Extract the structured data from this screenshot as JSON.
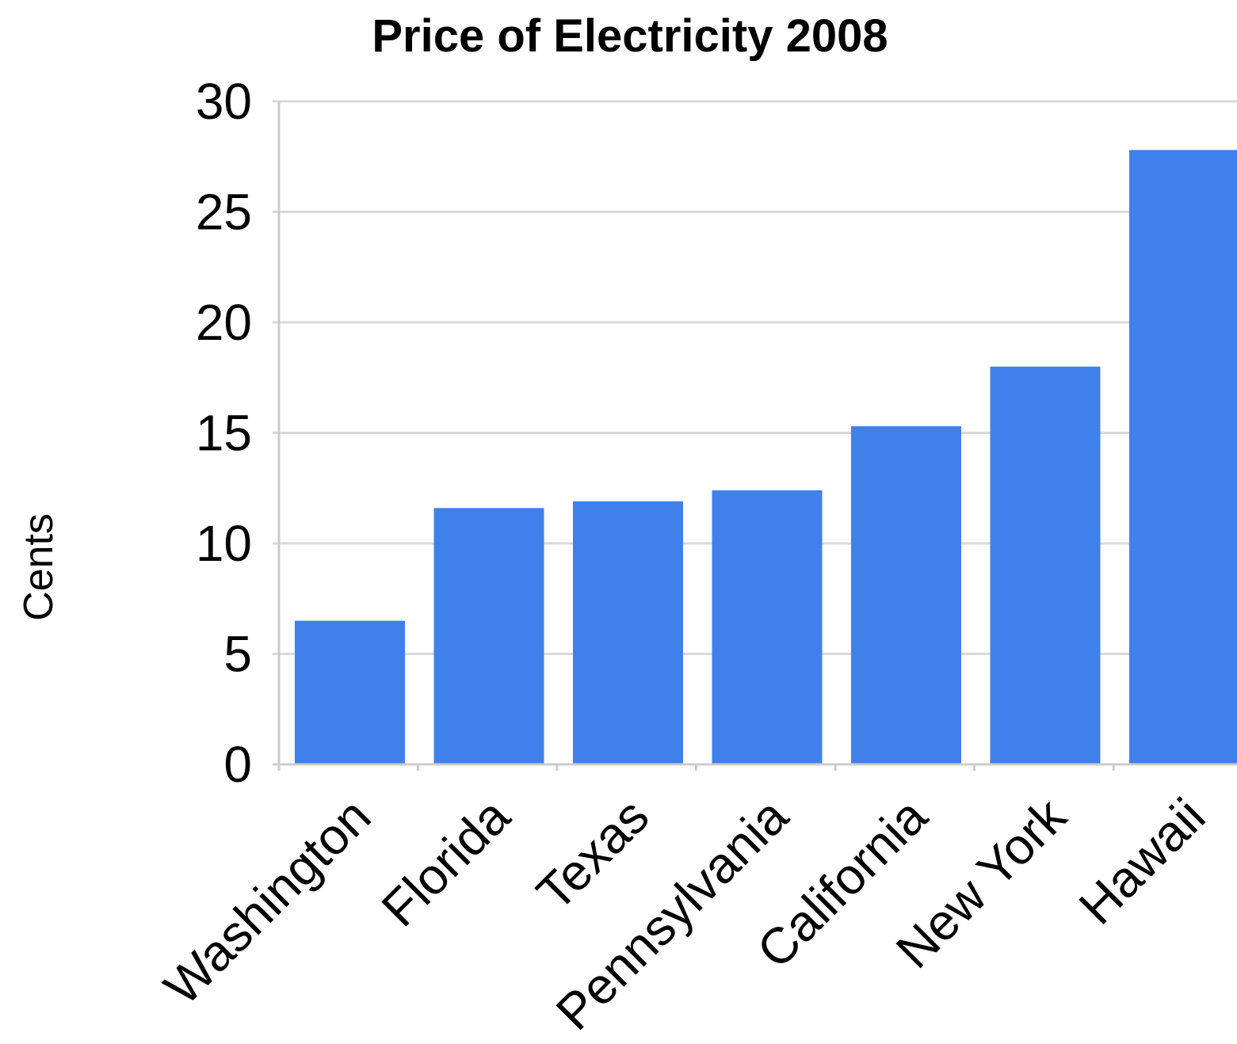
{
  "chart_data": {
    "type": "bar",
    "title": "Price of Electricity 2008",
    "xlabel": "",
    "ylabel": "Cents",
    "categories": [
      "Washington",
      "Florida",
      "Texas",
      "Pennsylvania",
      "California",
      "New York",
      "Hawaii"
    ],
    "values": [
      6.5,
      11.6,
      11.9,
      12.4,
      15.3,
      18.0,
      27.8
    ],
    "ylim": [
      0,
      30
    ],
    "yticks": [
      "0",
      "5",
      "10",
      "15",
      "20",
      "25",
      "30"
    ],
    "grid": true,
    "legend": "none",
    "colors": {
      "bar": "#4080ea",
      "grid": "#d9d9d9",
      "text": "#000000"
    }
  }
}
